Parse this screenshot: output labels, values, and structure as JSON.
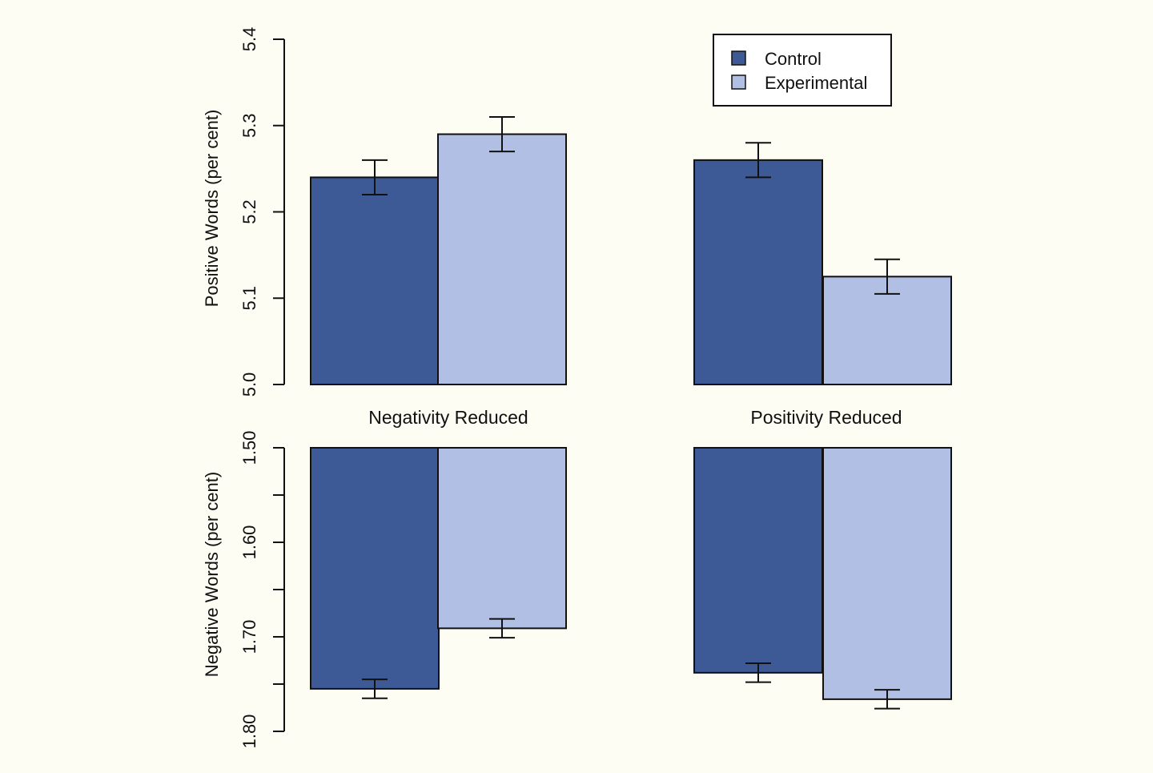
{
  "chart_data": [
    {
      "type": "bar",
      "panel": "top",
      "ylabel": "Positive Words (per cent)",
      "ylim": [
        5.0,
        5.4
      ],
      "yticks": [
        "5.0",
        "5.1",
        "5.2",
        "5.3",
        "5.4"
      ],
      "groups": [
        "Negativity Reduced",
        "Positivity Reduced"
      ],
      "series": [
        {
          "name": "Control",
          "values": [
            5.24,
            5.26
          ],
          "error": [
            0.02,
            0.02
          ]
        },
        {
          "name": "Experimental",
          "values": [
            5.29,
            5.125
          ],
          "error": [
            0.02,
            0.02
          ]
        }
      ],
      "legend": "top-right",
      "grid": false
    },
    {
      "type": "bar",
      "panel": "bottom",
      "ylabel": "Negative Words (per cent)",
      "ylim": [
        1.5,
        1.8
      ],
      "y_inverted": true,
      "yticks": [
        "1.50",
        "1.60",
        "1.70",
        "1.80"
      ],
      "groups": [
        "Negativity Reduced",
        "Positivity Reduced"
      ],
      "series": [
        {
          "name": "Control",
          "values": [
            1.755,
            1.738
          ],
          "error": [
            0.01,
            0.01
          ]
        },
        {
          "name": "Experimental",
          "values": [
            1.691,
            1.766
          ],
          "error": [
            0.01,
            0.01
          ]
        }
      ],
      "grid": false
    }
  ],
  "colors": {
    "control": "#3d5a96",
    "experimental": "#b0bfe3",
    "background": "#fdfdf3"
  }
}
